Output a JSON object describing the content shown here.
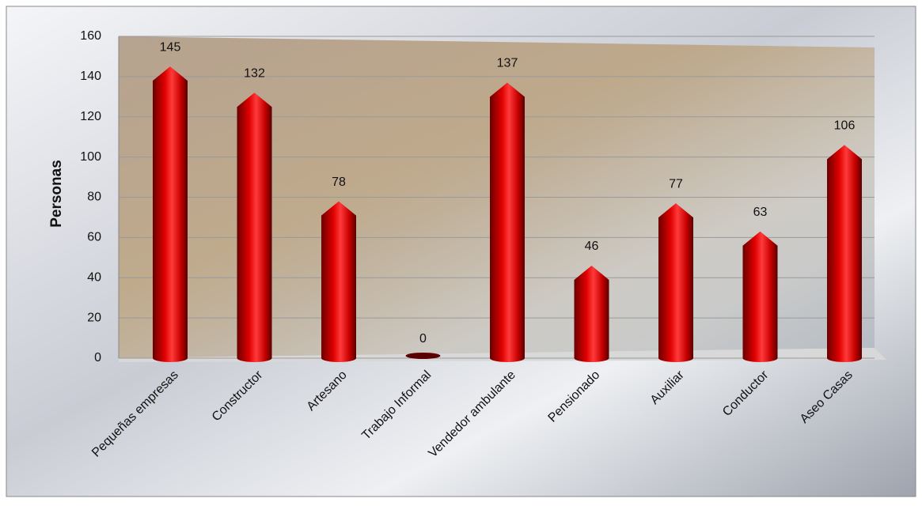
{
  "chart_data": {
    "type": "bar",
    "y_label": "Personas",
    "categories": [
      "Pequeñas empresas",
      "Constructor",
      "Artesano",
      "Trabajo Informal",
      "Vendedor ambulante",
      "Pensionado",
      "Auxiliar",
      "Conductor",
      "Aseo Casas"
    ],
    "values": [
      145,
      132,
      78,
      0,
      137,
      46,
      77,
      63,
      106
    ],
    "color": "#e00000",
    "ylim": [
      0,
      160
    ],
    "yticks": [
      0,
      20,
      40,
      60,
      80,
      100,
      120,
      140,
      160
    ],
    "grid": true
  }
}
